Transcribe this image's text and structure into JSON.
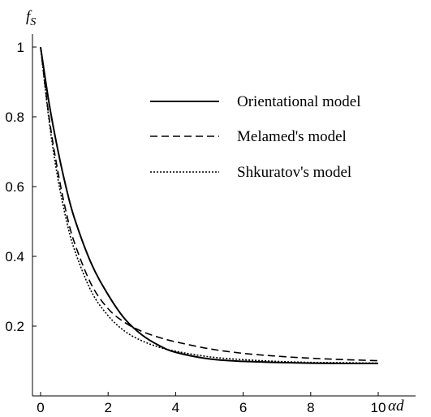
{
  "chart_data": {
    "type": "line",
    "title": "",
    "xlabel": "αd",
    "ylabel_main": "f",
    "ylabel_sub": "S",
    "xlim": [
      0,
      10.5
    ],
    "ylim": [
      0,
      1.05
    ],
    "xticks": [
      0,
      2,
      4,
      6,
      8,
      10
    ],
    "yticks": [
      0.2,
      0.4,
      0.6,
      0.8,
      1
    ],
    "xtick_labels": [
      "0",
      "2",
      "4",
      "6",
      "8",
      "10"
    ],
    "ytick_labels": [
      "0.2",
      "0.4",
      "0.6",
      "0.8",
      "1"
    ],
    "grid": false,
    "legend_position": "top-right",
    "series": [
      {
        "name": "Orientational model",
        "style": "solid",
        "x": [
          0,
          0.25,
          0.5,
          0.75,
          1,
          1.5,
          2,
          2.5,
          3,
          3.5,
          4,
          5,
          6,
          7,
          8,
          9,
          10
        ],
        "y": [
          1.0,
          0.84,
          0.71,
          0.6,
          0.51,
          0.38,
          0.29,
          0.22,
          0.175,
          0.145,
          0.125,
          0.106,
          0.099,
          0.096,
          0.094,
          0.093,
          0.093
        ]
      },
      {
        "name": "Melamed's model",
        "style": "dashed",
        "x": [
          0,
          0.25,
          0.5,
          0.75,
          1,
          1.5,
          2,
          2.5,
          3,
          3.5,
          4,
          5,
          6,
          7,
          8,
          9,
          10
        ],
        "y": [
          1.0,
          0.8,
          0.65,
          0.53,
          0.44,
          0.32,
          0.25,
          0.21,
          0.185,
          0.168,
          0.155,
          0.135,
          0.122,
          0.114,
          0.108,
          0.104,
          0.101
        ]
      },
      {
        "name": "Shkuratov's model",
        "style": "dotted",
        "x": [
          0,
          0.25,
          0.5,
          0.75,
          1,
          1.5,
          2,
          2.5,
          3,
          3.5,
          4,
          5,
          6,
          7,
          8,
          9,
          10
        ],
        "y": [
          1.0,
          0.79,
          0.63,
          0.51,
          0.42,
          0.3,
          0.23,
          0.185,
          0.158,
          0.14,
          0.128,
          0.112,
          0.104,
          0.099,
          0.096,
          0.095,
          0.094
        ]
      }
    ]
  }
}
